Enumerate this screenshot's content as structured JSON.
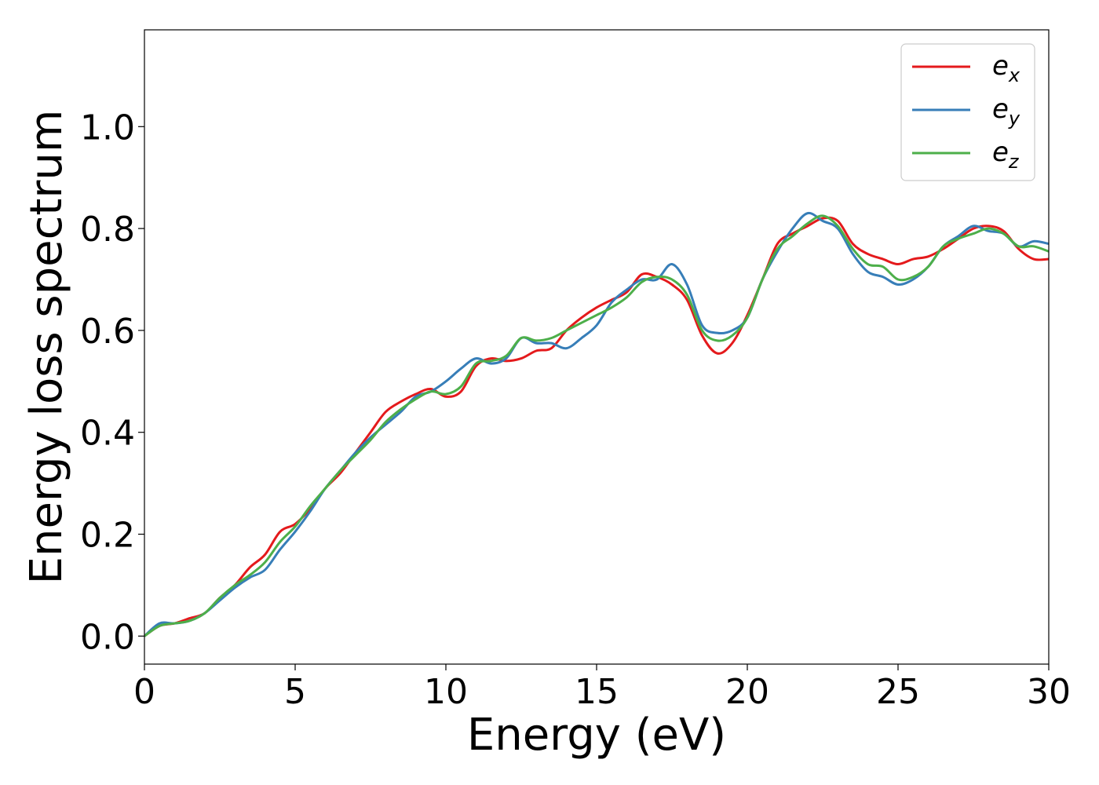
{
  "chart_data": {
    "type": "line",
    "xlabel": "Energy (eV)",
    "ylabel": "Energy loss spectrum",
    "xlim": [
      0,
      30
    ],
    "ylim": [
      -0.055,
      1.19
    ],
    "xticks": [
      0,
      5,
      10,
      15,
      20,
      25,
      30
    ],
    "xtick_labels": [
      "0",
      "5",
      "10",
      "15",
      "20",
      "25",
      "30"
    ],
    "yticks": [
      0.0,
      0.2,
      0.4,
      0.6,
      0.8,
      1.0
    ],
    "ytick_labels": [
      "0.0",
      "0.2",
      "0.4",
      "0.6",
      "0.8",
      "1.0"
    ],
    "grid": false,
    "legend_position": "top-right",
    "x": [
      0,
      0.5,
      1,
      1.5,
      2,
      2.5,
      3,
      3.5,
      4,
      4.5,
      5,
      5.5,
      6,
      6.5,
      7,
      7.5,
      8,
      8.5,
      9,
      9.5,
      10,
      10.5,
      11,
      11.5,
      12,
      12.5,
      13,
      13.5,
      14,
      14.5,
      15,
      15.5,
      16,
      16.5,
      17,
      17.5,
      18,
      18.5,
      19,
      19.5,
      20,
      20.5,
      21,
      21.5,
      22,
      22.5,
      23,
      23.5,
      24,
      24.5,
      25,
      25.5,
      26,
      26.5,
      27,
      27.5,
      28,
      28.5,
      29,
      29.5,
      30
    ],
    "series": [
      {
        "name": "e",
        "subscript": "x",
        "color": "#e41a1c",
        "values": [
          0.0,
          0.02,
          0.025,
          0.035,
          0.045,
          0.075,
          0.1,
          0.135,
          0.16,
          0.205,
          0.22,
          0.25,
          0.29,
          0.32,
          0.36,
          0.4,
          0.44,
          0.46,
          0.475,
          0.485,
          0.47,
          0.48,
          0.53,
          0.545,
          0.54,
          0.545,
          0.56,
          0.565,
          0.6,
          0.625,
          0.645,
          0.66,
          0.675,
          0.71,
          0.705,
          0.69,
          0.66,
          0.59,
          0.555,
          0.575,
          0.63,
          0.7,
          0.77,
          0.79,
          0.805,
          0.82,
          0.815,
          0.77,
          0.75,
          0.74,
          0.73,
          0.74,
          0.745,
          0.76,
          0.78,
          0.8,
          0.805,
          0.795,
          0.76,
          0.74,
          0.74
        ]
      },
      {
        "name": "e",
        "subscript": "y",
        "color": "#377eb8",
        "values": [
          0.0,
          0.025,
          0.025,
          0.03,
          0.045,
          0.07,
          0.095,
          0.115,
          0.13,
          0.17,
          0.205,
          0.245,
          0.29,
          0.325,
          0.36,
          0.39,
          0.415,
          0.44,
          0.47,
          0.48,
          0.5,
          0.525,
          0.545,
          0.535,
          0.545,
          0.585,
          0.575,
          0.575,
          0.565,
          0.585,
          0.61,
          0.655,
          0.68,
          0.7,
          0.7,
          0.73,
          0.69,
          0.61,
          0.595,
          0.6,
          0.625,
          0.7,
          0.755,
          0.8,
          0.83,
          0.815,
          0.8,
          0.75,
          0.715,
          0.705,
          0.69,
          0.7,
          0.725,
          0.765,
          0.785,
          0.805,
          0.795,
          0.79,
          0.765,
          0.775,
          0.77
        ]
      },
      {
        "name": "e",
        "subscript": "z",
        "color": "#4daf4a",
        "values": [
          0.0,
          0.02,
          0.025,
          0.03,
          0.045,
          0.075,
          0.1,
          0.12,
          0.145,
          0.185,
          0.215,
          0.255,
          0.29,
          0.325,
          0.355,
          0.385,
          0.42,
          0.445,
          0.465,
          0.48,
          0.475,
          0.49,
          0.535,
          0.54,
          0.55,
          0.585,
          0.58,
          0.585,
          0.6,
          0.615,
          0.63,
          0.645,
          0.665,
          0.695,
          0.705,
          0.7,
          0.67,
          0.6,
          0.58,
          0.59,
          0.625,
          0.7,
          0.76,
          0.785,
          0.81,
          0.825,
          0.805,
          0.76,
          0.73,
          0.725,
          0.7,
          0.705,
          0.725,
          0.765,
          0.78,
          0.79,
          0.8,
          0.79,
          0.765,
          0.765,
          0.755
        ]
      }
    ]
  }
}
